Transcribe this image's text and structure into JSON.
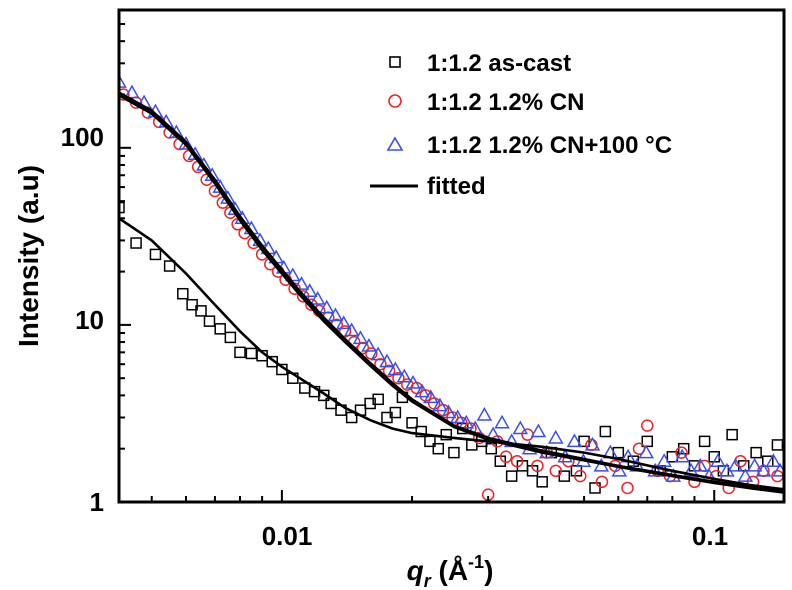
{
  "chart_data": {
    "type": "scatter",
    "xscale": "log",
    "yscale": "log",
    "xlim": [
      0.0042,
      0.145
    ],
    "ylim": [
      1,
      600
    ],
    "xlabel_symbol": "q",
    "xlabel_subscript": "r",
    "xlabel_unit_open": " (Å",
    "xlabel_unit_exp": "-1",
    "xlabel_unit_close": ")",
    "ylabel": "Intensity (a.u)",
    "x_ticks": [
      {
        "value": 0.01,
        "label": "0.01"
      },
      {
        "value": 0.1,
        "label": "0.1"
      }
    ],
    "y_ticks": [
      {
        "value": 1,
        "label": "1"
      },
      {
        "value": 10,
        "label": "10"
      },
      {
        "value": 100,
        "label": "100"
      }
    ],
    "legend_position": "top-right",
    "series": [
      {
        "name": "1:1.2 as-cast",
        "marker": "square",
        "color": "#000000",
        "points": [
          [
            0.0042,
            46
          ],
          [
            0.0046,
            29
          ],
          [
            0.0051,
            25
          ],
          [
            0.0055,
            21.5
          ],
          [
            0.0059,
            15
          ],
          [
            0.0062,
            13
          ],
          [
            0.0065,
            12
          ],
          [
            0.0068,
            10.5
          ],
          [
            0.0072,
            9.5
          ],
          [
            0.0076,
            8.5
          ],
          [
            0.008,
            7.0
          ],
          [
            0.0085,
            6.9
          ],
          [
            0.009,
            6.7
          ],
          [
            0.0095,
            6.2
          ],
          [
            0.01,
            5.6
          ],
          [
            0.0106,
            5.0
          ],
          [
            0.0113,
            4.4
          ],
          [
            0.0119,
            4.2
          ],
          [
            0.0125,
            4.0
          ],
          [
            0.013,
            3.6
          ],
          [
            0.0137,
            3.3
          ],
          [
            0.0145,
            3.0
          ],
          [
            0.0152,
            3.3
          ],
          [
            0.016,
            3.6
          ],
          [
            0.0167,
            3.8
          ],
          [
            0.0175,
            3.0
          ],
          [
            0.0183,
            3.2
          ],
          [
            0.019,
            3.9
          ],
          [
            0.02,
            2.8
          ],
          [
            0.021,
            2.5
          ],
          [
            0.022,
            2.2
          ],
          [
            0.023,
            2.0
          ],
          [
            0.024,
            2.4
          ],
          [
            0.025,
            1.9
          ],
          [
            0.0262,
            2.6
          ],
          [
            0.0275,
            2.1
          ],
          [
            0.029,
            2.2
          ],
          [
            0.0305,
            2.0
          ],
          [
            0.032,
            1.7
          ],
          [
            0.034,
            1.4
          ],
          [
            0.036,
            1.6
          ],
          [
            0.038,
            1.5
          ],
          [
            0.04,
            1.3
          ],
          [
            0.042,
            1.9
          ],
          [
            0.045,
            1.4
          ],
          [
            0.048,
            1.5
          ],
          [
            0.05,
            2.2
          ],
          [
            0.053,
            1.2
          ],
          [
            0.056,
            2.5
          ],
          [
            0.06,
            1.9
          ],
          [
            0.065,
            1.7
          ],
          [
            0.07,
            2.2
          ],
          [
            0.075,
            1.5
          ],
          [
            0.08,
            1.8
          ],
          [
            0.085,
            2.0
          ],
          [
            0.09,
            1.6
          ],
          [
            0.095,
            2.2
          ],
          [
            0.1,
            1.8
          ],
          [
            0.105,
            1.5
          ],
          [
            0.11,
            2.4
          ],
          [
            0.117,
            1.6
          ],
          [
            0.125,
            1.9
          ],
          [
            0.133,
            1.7
          ],
          [
            0.14,
            2.1
          ]
        ]
      },
      {
        "name": "1:1.2 1.2% CN",
        "marker": "circle",
        "color": "#e8262a",
        "points": [
          [
            0.0043,
            200
          ],
          [
            0.0046,
            180
          ],
          [
            0.0049,
            158
          ],
          [
            0.0052,
            140
          ],
          [
            0.0055,
            122
          ],
          [
            0.0058,
            105
          ],
          [
            0.0061,
            90
          ],
          [
            0.0064,
            78
          ],
          [
            0.0067,
            66
          ],
          [
            0.007,
            57
          ],
          [
            0.0073,
            49
          ],
          [
            0.0076,
            43
          ],
          [
            0.0079,
            37
          ],
          [
            0.0082,
            33
          ],
          [
            0.0086,
            29
          ],
          [
            0.009,
            25
          ],
          [
            0.0094,
            22
          ],
          [
            0.0098,
            20
          ],
          [
            0.0102,
            18
          ],
          [
            0.0107,
            16
          ],
          [
            0.0112,
            14.5
          ],
          [
            0.0117,
            13
          ],
          [
            0.0122,
            12
          ],
          [
            0.0128,
            11
          ],
          [
            0.0134,
            10
          ],
          [
            0.014,
            9.2
          ],
          [
            0.0147,
            8.0
          ],
          [
            0.0154,
            7.4
          ],
          [
            0.0161,
            6.9
          ],
          [
            0.0169,
            6.0
          ],
          [
            0.0177,
            5.5
          ],
          [
            0.0186,
            5.0
          ],
          [
            0.0195,
            4.6
          ],
          [
            0.0205,
            4.4
          ],
          [
            0.0215,
            4.0
          ],
          [
            0.0225,
            3.6
          ],
          [
            0.0236,
            3.3
          ],
          [
            0.0248,
            3.0
          ],
          [
            0.026,
            2.8
          ],
          [
            0.0273,
            2.6
          ],
          [
            0.0286,
            2.3
          ],
          [
            0.03,
            1.1
          ],
          [
            0.0315,
            2.2
          ],
          [
            0.033,
            1.8
          ],
          [
            0.035,
            1.7
          ],
          [
            0.037,
            2.4
          ],
          [
            0.039,
            1.6
          ],
          [
            0.041,
            1.9
          ],
          [
            0.043,
            1.5
          ],
          [
            0.046,
            1.7
          ],
          [
            0.049,
            1.4
          ],
          [
            0.052,
            2.1
          ],
          [
            0.055,
            1.3
          ],
          [
            0.059,
            1.6
          ],
          [
            0.063,
            1.2
          ],
          [
            0.067,
            2.0
          ],
          [
            0.07,
            2.7
          ],
          [
            0.074,
            1.5
          ],
          [
            0.079,
            1.4
          ],
          [
            0.084,
            1.9
          ],
          [
            0.09,
            1.3
          ],
          [
            0.095,
            1.6
          ],
          [
            0.101,
            1.4
          ],
          [
            0.108,
            1.2
          ],
          [
            0.115,
            1.7
          ],
          [
            0.123,
            1.3
          ],
          [
            0.13,
            1.5
          ],
          [
            0.14,
            1.4
          ]
        ]
      },
      {
        "name": "1:1.2 1.2% CN+100 °C",
        "marker": "triangle",
        "color": "#3b4fe8",
        "points": [
          [
            0.0042,
            235
          ],
          [
            0.0045,
            205
          ],
          [
            0.0048,
            180
          ],
          [
            0.0051,
            160
          ],
          [
            0.0054,
            140
          ],
          [
            0.0057,
            122
          ],
          [
            0.006,
            105
          ],
          [
            0.0063,
            92
          ],
          [
            0.0066,
            80
          ],
          [
            0.0069,
            70
          ],
          [
            0.0072,
            60
          ],
          [
            0.0075,
            52
          ],
          [
            0.0078,
            45
          ],
          [
            0.0081,
            40
          ],
          [
            0.0085,
            35
          ],
          [
            0.0089,
            30
          ],
          [
            0.0093,
            27
          ],
          [
            0.0097,
            24
          ],
          [
            0.0101,
            21
          ],
          [
            0.0106,
            19
          ],
          [
            0.0111,
            17
          ],
          [
            0.0116,
            15.5
          ],
          [
            0.0121,
            14
          ],
          [
            0.0127,
            12.5
          ],
          [
            0.0133,
            11.3
          ],
          [
            0.0139,
            10.2
          ],
          [
            0.0145,
            9.3
          ],
          [
            0.0152,
            8.4
          ],
          [
            0.0159,
            7.6
          ],
          [
            0.0167,
            6.8
          ],
          [
            0.0175,
            6.2
          ],
          [
            0.0183,
            5.6
          ],
          [
            0.0192,
            5.1
          ],
          [
            0.0201,
            4.7
          ],
          [
            0.0211,
            4.2
          ],
          [
            0.0221,
            3.9
          ],
          [
            0.0232,
            3.5
          ],
          [
            0.0243,
            3.2
          ],
          [
            0.0255,
            3.0
          ],
          [
            0.0267,
            2.8
          ],
          [
            0.028,
            2.6
          ],
          [
            0.0294,
            3.1
          ],
          [
            0.0308,
            2.4
          ],
          [
            0.0323,
            2.8
          ],
          [
            0.034,
            2.2
          ],
          [
            0.0356,
            2.6
          ],
          [
            0.0374,
            2.0
          ],
          [
            0.0392,
            2.5
          ],
          [
            0.041,
            1.9
          ],
          [
            0.043,
            2.3
          ],
          [
            0.0452,
            1.8
          ],
          [
            0.0475,
            2.2
          ],
          [
            0.0498,
            1.7
          ],
          [
            0.0523,
            2.1
          ],
          [
            0.0548,
            1.6
          ],
          [
            0.0575,
            1.9
          ],
          [
            0.0603,
            1.5
          ],
          [
            0.0632,
            1.8
          ],
          [
            0.0663,
            1.6
          ],
          [
            0.0696,
            1.9
          ],
          [
            0.073,
            1.5
          ],
          [
            0.0766,
            1.7
          ],
          [
            0.0804,
            1.4
          ],
          [
            0.0843,
            1.8
          ],
          [
            0.0884,
            1.5
          ],
          [
            0.0928,
            1.6
          ],
          [
            0.0973,
            1.4
          ],
          [
            0.102,
            1.7
          ],
          [
            0.107,
            1.5
          ],
          [
            0.112,
            1.6
          ],
          [
            0.118,
            1.4
          ],
          [
            0.124,
            1.6
          ],
          [
            0.13,
            1.5
          ],
          [
            0.137,
            1.7
          ],
          [
            0.142,
            1.5
          ]
        ]
      },
      {
        "name": "fitted",
        "marker": "line",
        "color": "#000000",
        "lines": [
          [
            [
              0.0042,
              40
            ],
            [
              0.005,
              30
            ],
            [
              0.006,
              19.5
            ],
            [
              0.007,
              13
            ],
            [
              0.008,
              9.2
            ],
            [
              0.009,
              7.0
            ],
            [
              0.01,
              5.8
            ],
            [
              0.011,
              5.0
            ],
            [
              0.0125,
              4.1
            ],
            [
              0.014,
              3.4
            ],
            [
              0.016,
              2.9
            ],
            [
              0.018,
              2.6
            ],
            [
              0.02,
              2.45
            ],
            [
              0.025,
              2.3
            ],
            [
              0.03,
              2.2
            ],
            [
              0.04,
              2.05
            ],
            [
              0.05,
              1.9
            ],
            [
              0.06,
              1.75
            ],
            [
              0.08,
              1.5
            ],
            [
              0.1,
              1.35
            ],
            [
              0.12,
              1.25
            ],
            [
              0.145,
              1.18
            ]
          ],
          [
            [
              0.0042,
              205
            ],
            [
              0.005,
              162
            ],
            [
              0.006,
              108
            ],
            [
              0.007,
              66
            ],
            [
              0.008,
              41
            ],
            [
              0.009,
              28
            ],
            [
              0.01,
              20.5
            ],
            [
              0.011,
              15.5
            ],
            [
              0.0125,
              11.0
            ],
            [
              0.014,
              8.3
            ],
            [
              0.016,
              6.1
            ],
            [
              0.018,
              4.7
            ],
            [
              0.02,
              3.8
            ],
            [
              0.025,
              2.7
            ],
            [
              0.03,
              2.3
            ],
            [
              0.04,
              1.95
            ],
            [
              0.05,
              1.75
            ],
            [
              0.06,
              1.6
            ],
            [
              0.08,
              1.42
            ],
            [
              0.1,
              1.3
            ],
            [
              0.12,
              1.22
            ],
            [
              0.145,
              1.15
            ]
          ],
          [
            [
              0.0042,
              198
            ],
            [
              0.005,
              156
            ],
            [
              0.006,
              104
            ],
            [
              0.007,
              63
            ],
            [
              0.008,
              39
            ],
            [
              0.009,
              26.5
            ],
            [
              0.01,
              19.5
            ],
            [
              0.011,
              14.8
            ],
            [
              0.0125,
              10.5
            ],
            [
              0.014,
              8.0
            ],
            [
              0.016,
              5.9
            ],
            [
              0.018,
              4.55
            ],
            [
              0.02,
              3.7
            ],
            [
              0.025,
              2.65
            ],
            [
              0.03,
              2.25
            ],
            [
              0.04,
              1.9
            ],
            [
              0.05,
              1.72
            ],
            [
              0.06,
              1.58
            ],
            [
              0.08,
              1.4
            ],
            [
              0.1,
              1.28
            ],
            [
              0.12,
              1.2
            ],
            [
              0.145,
              1.13
            ]
          ]
        ]
      }
    ]
  }
}
